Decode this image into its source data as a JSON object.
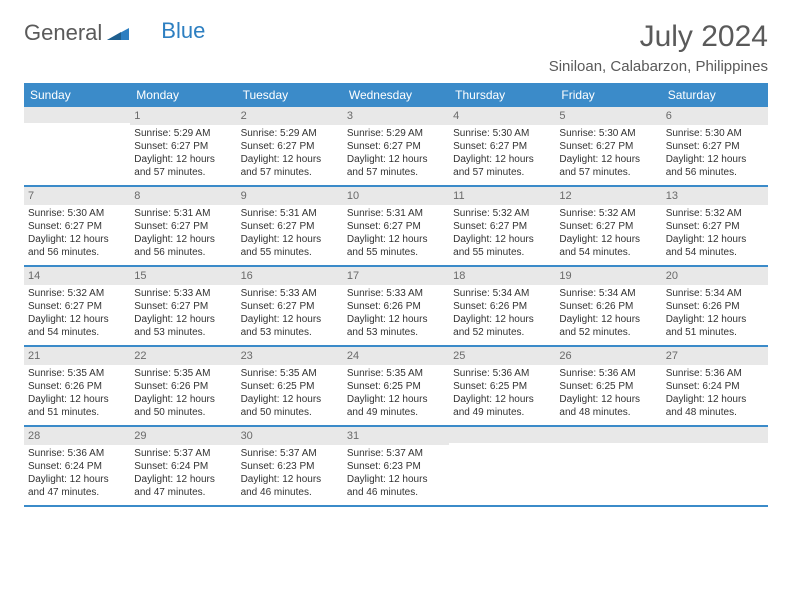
{
  "logo": {
    "text1": "General",
    "text2": "Blue"
  },
  "title": "July 2024",
  "location": "Siniloan, Calabarzon, Philippines",
  "colors": {
    "header_bg": "#3b8bc9",
    "header_text": "#ffffff",
    "daynum_bg": "#e8e8e8",
    "daynum_text": "#6a6a6a",
    "border": "#3b8bc9",
    "logo_gray": "#5a5a5a",
    "logo_blue": "#2d7fc1"
  },
  "day_names": [
    "Sunday",
    "Monday",
    "Tuesday",
    "Wednesday",
    "Thursday",
    "Friday",
    "Saturday"
  ],
  "weeks": [
    [
      {
        "num": "",
        "sunrise": "",
        "sunset": "",
        "daylight": ""
      },
      {
        "num": "1",
        "sunrise": "Sunrise: 5:29 AM",
        "sunset": "Sunset: 6:27 PM",
        "daylight": "Daylight: 12 hours and 57 minutes."
      },
      {
        "num": "2",
        "sunrise": "Sunrise: 5:29 AM",
        "sunset": "Sunset: 6:27 PM",
        "daylight": "Daylight: 12 hours and 57 minutes."
      },
      {
        "num": "3",
        "sunrise": "Sunrise: 5:29 AM",
        "sunset": "Sunset: 6:27 PM",
        "daylight": "Daylight: 12 hours and 57 minutes."
      },
      {
        "num": "4",
        "sunrise": "Sunrise: 5:30 AM",
        "sunset": "Sunset: 6:27 PM",
        "daylight": "Daylight: 12 hours and 57 minutes."
      },
      {
        "num": "5",
        "sunrise": "Sunrise: 5:30 AM",
        "sunset": "Sunset: 6:27 PM",
        "daylight": "Daylight: 12 hours and 57 minutes."
      },
      {
        "num": "6",
        "sunrise": "Sunrise: 5:30 AM",
        "sunset": "Sunset: 6:27 PM",
        "daylight": "Daylight: 12 hours and 56 minutes."
      }
    ],
    [
      {
        "num": "7",
        "sunrise": "Sunrise: 5:30 AM",
        "sunset": "Sunset: 6:27 PM",
        "daylight": "Daylight: 12 hours and 56 minutes."
      },
      {
        "num": "8",
        "sunrise": "Sunrise: 5:31 AM",
        "sunset": "Sunset: 6:27 PM",
        "daylight": "Daylight: 12 hours and 56 minutes."
      },
      {
        "num": "9",
        "sunrise": "Sunrise: 5:31 AM",
        "sunset": "Sunset: 6:27 PM",
        "daylight": "Daylight: 12 hours and 55 minutes."
      },
      {
        "num": "10",
        "sunrise": "Sunrise: 5:31 AM",
        "sunset": "Sunset: 6:27 PM",
        "daylight": "Daylight: 12 hours and 55 minutes."
      },
      {
        "num": "11",
        "sunrise": "Sunrise: 5:32 AM",
        "sunset": "Sunset: 6:27 PM",
        "daylight": "Daylight: 12 hours and 55 minutes."
      },
      {
        "num": "12",
        "sunrise": "Sunrise: 5:32 AM",
        "sunset": "Sunset: 6:27 PM",
        "daylight": "Daylight: 12 hours and 54 minutes."
      },
      {
        "num": "13",
        "sunrise": "Sunrise: 5:32 AM",
        "sunset": "Sunset: 6:27 PM",
        "daylight": "Daylight: 12 hours and 54 minutes."
      }
    ],
    [
      {
        "num": "14",
        "sunrise": "Sunrise: 5:32 AM",
        "sunset": "Sunset: 6:27 PM",
        "daylight": "Daylight: 12 hours and 54 minutes."
      },
      {
        "num": "15",
        "sunrise": "Sunrise: 5:33 AM",
        "sunset": "Sunset: 6:27 PM",
        "daylight": "Daylight: 12 hours and 53 minutes."
      },
      {
        "num": "16",
        "sunrise": "Sunrise: 5:33 AM",
        "sunset": "Sunset: 6:27 PM",
        "daylight": "Daylight: 12 hours and 53 minutes."
      },
      {
        "num": "17",
        "sunrise": "Sunrise: 5:33 AM",
        "sunset": "Sunset: 6:26 PM",
        "daylight": "Daylight: 12 hours and 53 minutes."
      },
      {
        "num": "18",
        "sunrise": "Sunrise: 5:34 AM",
        "sunset": "Sunset: 6:26 PM",
        "daylight": "Daylight: 12 hours and 52 minutes."
      },
      {
        "num": "19",
        "sunrise": "Sunrise: 5:34 AM",
        "sunset": "Sunset: 6:26 PM",
        "daylight": "Daylight: 12 hours and 52 minutes."
      },
      {
        "num": "20",
        "sunrise": "Sunrise: 5:34 AM",
        "sunset": "Sunset: 6:26 PM",
        "daylight": "Daylight: 12 hours and 51 minutes."
      }
    ],
    [
      {
        "num": "21",
        "sunrise": "Sunrise: 5:35 AM",
        "sunset": "Sunset: 6:26 PM",
        "daylight": "Daylight: 12 hours and 51 minutes."
      },
      {
        "num": "22",
        "sunrise": "Sunrise: 5:35 AM",
        "sunset": "Sunset: 6:26 PM",
        "daylight": "Daylight: 12 hours and 50 minutes."
      },
      {
        "num": "23",
        "sunrise": "Sunrise: 5:35 AM",
        "sunset": "Sunset: 6:25 PM",
        "daylight": "Daylight: 12 hours and 50 minutes."
      },
      {
        "num": "24",
        "sunrise": "Sunrise: 5:35 AM",
        "sunset": "Sunset: 6:25 PM",
        "daylight": "Daylight: 12 hours and 49 minutes."
      },
      {
        "num": "25",
        "sunrise": "Sunrise: 5:36 AM",
        "sunset": "Sunset: 6:25 PM",
        "daylight": "Daylight: 12 hours and 49 minutes."
      },
      {
        "num": "26",
        "sunrise": "Sunrise: 5:36 AM",
        "sunset": "Sunset: 6:25 PM",
        "daylight": "Daylight: 12 hours and 48 minutes."
      },
      {
        "num": "27",
        "sunrise": "Sunrise: 5:36 AM",
        "sunset": "Sunset: 6:24 PM",
        "daylight": "Daylight: 12 hours and 48 minutes."
      }
    ],
    [
      {
        "num": "28",
        "sunrise": "Sunrise: 5:36 AM",
        "sunset": "Sunset: 6:24 PM",
        "daylight": "Daylight: 12 hours and 47 minutes."
      },
      {
        "num": "29",
        "sunrise": "Sunrise: 5:37 AM",
        "sunset": "Sunset: 6:24 PM",
        "daylight": "Daylight: 12 hours and 47 minutes."
      },
      {
        "num": "30",
        "sunrise": "Sunrise: 5:37 AM",
        "sunset": "Sunset: 6:23 PM",
        "daylight": "Daylight: 12 hours and 46 minutes."
      },
      {
        "num": "31",
        "sunrise": "Sunrise: 5:37 AM",
        "sunset": "Sunset: 6:23 PM",
        "daylight": "Daylight: 12 hours and 46 minutes."
      },
      {
        "num": "",
        "sunrise": "",
        "sunset": "",
        "daylight": ""
      },
      {
        "num": "",
        "sunrise": "",
        "sunset": "",
        "daylight": ""
      },
      {
        "num": "",
        "sunrise": "",
        "sunset": "",
        "daylight": ""
      }
    ]
  ]
}
